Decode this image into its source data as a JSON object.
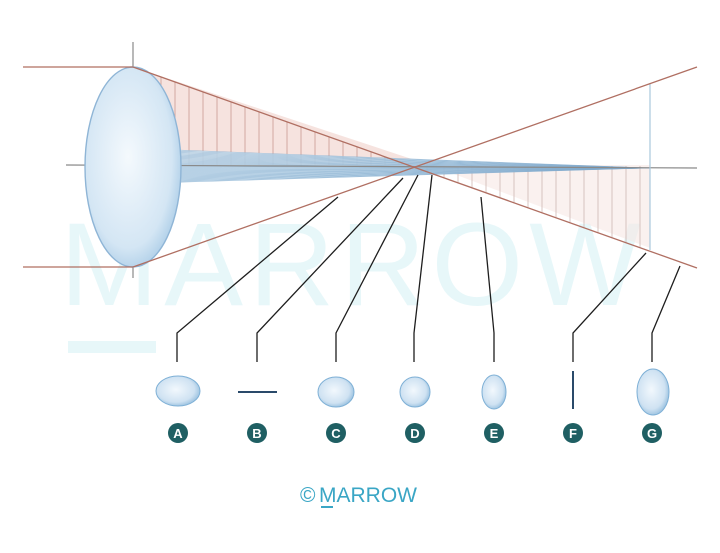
{
  "watermark": {
    "text": "MARROW"
  },
  "diagram": {
    "labels": [
      "A",
      "B",
      "C",
      "D",
      "E",
      "F",
      "G"
    ],
    "colors": {
      "ray": "#b06f62",
      "axis": "#8a8a8a",
      "leader": "#1e1e1e",
      "badge": "#1f5f63",
      "shape_fill_edge": "#7eb0d6",
      "shape_fill_center": "#f2f8fd",
      "vertical_fan": "#f3d9d4",
      "horizontal_fan": "#cfe3f1"
    },
    "cross_sections": [
      {
        "label": "A",
        "shape": "horizontal-ellipse"
      },
      {
        "label": "B",
        "shape": "horizontal-line"
      },
      {
        "label": "C",
        "shape": "horizontal-ellipse"
      },
      {
        "label": "D",
        "shape": "circle"
      },
      {
        "label": "E",
        "shape": "vertical-ellipse"
      },
      {
        "label": "F",
        "shape": "vertical-line"
      },
      {
        "label": "G",
        "shape": "vertical-ellipse"
      }
    ]
  },
  "footer": {
    "copyright_symbol": "©",
    "brand": "MARROW"
  }
}
